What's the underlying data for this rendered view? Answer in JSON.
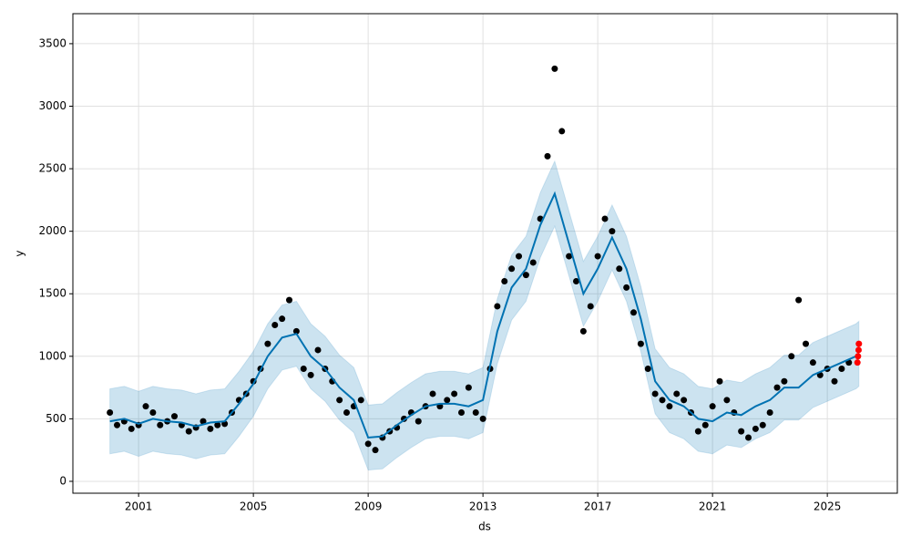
{
  "chart_data": {
    "type": "forecast",
    "xlabel": "ds",
    "ylabel": "y",
    "grid": true,
    "xlim": [
      1998.71,
      2027.44
    ],
    "ylim": [
      -95,
      3740
    ],
    "xticks": [
      2001,
      2005,
      2009,
      2013,
      2017,
      2021,
      2025
    ],
    "yticks": [
      0,
      500,
      1000,
      1500,
      2000,
      2500,
      3000,
      3500
    ],
    "observed": {
      "color": "#000000",
      "x": [
        2000,
        2000.25,
        2000.5,
        2000.75,
        2001,
        2001.25,
        2001.5,
        2001.75,
        2002,
        2002.25,
        2002.5,
        2002.75,
        2003,
        2003.25,
        2003.5,
        2003.75,
        2004,
        2004.25,
        2004.5,
        2004.75,
        2005,
        2005.25,
        2005.5,
        2005.75,
        2006,
        2006.25,
        2006.5,
        2006.75,
        2007,
        2007.25,
        2007.5,
        2007.75,
        2008,
        2008.25,
        2008.5,
        2008.75,
        2009,
        2009.25,
        2009.5,
        2009.75,
        2010,
        2010.25,
        2010.5,
        2010.75,
        2011,
        2011.25,
        2011.5,
        2011.75,
        2012,
        2012.25,
        2012.5,
        2012.75,
        2013,
        2013.25,
        2013.5,
        2013.75,
        2014,
        2014.25,
        2014.5,
        2014.75,
        2015,
        2015.25,
        2015.5,
        2015.75,
        2016,
        2016.25,
        2016.5,
        2016.75,
        2017,
        2017.25,
        2017.5,
        2017.75,
        2018,
        2018.25,
        2018.5,
        2018.75,
        2019,
        2019.25,
        2019.5,
        2019.75,
        2020,
        2020.25,
        2020.5,
        2020.75,
        2021,
        2021.25,
        2021.5,
        2021.75,
        2022,
        2022.25,
        2022.5,
        2022.75,
        2023,
        2023.25,
        2023.5,
        2023.75,
        2024,
        2024.25,
        2024.5,
        2024.75,
        2025,
        2025.25,
        2025.5,
        2025.75
      ],
      "values": [
        550,
        450,
        480,
        420,
        450,
        600,
        550,
        450,
        480,
        520,
        450,
        400,
        430,
        480,
        420,
        450,
        460,
        550,
        650,
        700,
        800,
        900,
        1100,
        1250,
        1300,
        1450,
        1200,
        900,
        850,
        1050,
        900,
        800,
        650,
        550,
        600,
        650,
        300,
        250,
        350,
        400,
        430,
        500,
        550,
        480,
        600,
        700,
        600,
        650,
        700,
        550,
        750,
        550,
        500,
        900,
        1400,
        1600,
        1700,
        1800,
        1650,
        1750,
        2100,
        2600,
        3300,
        2800,
        1800,
        1600,
        1200,
        1400,
        1800,
        2100,
        2000,
        1700,
        1550,
        1350,
        1100,
        900,
        700,
        650,
        600,
        700,
        650,
        550,
        400,
        450,
        600,
        800,
        650,
        550,
        400,
        350,
        420,
        450,
        550,
        750,
        800,
        1000,
        1450,
        1100,
        950,
        850,
        900,
        800,
        900,
        950
      ]
    },
    "recent": {
      "color": "#ff0000",
      "x": [
        2026.05,
        2026.07,
        2026.09,
        2026.1
      ],
      "values": [
        950,
        1000,
        1050,
        1100
      ]
    },
    "forecast": {
      "color": "#0072B2",
      "x": [
        2000,
        2000.5,
        2001,
        2001.5,
        2002,
        2002.5,
        2003,
        2003.5,
        2004,
        2004.5,
        2005,
        2005.5,
        2006,
        2006.5,
        2007,
        2007.5,
        2008,
        2008.5,
        2009,
        2009.5,
        2010,
        2010.5,
        2011,
        2011.5,
        2012,
        2012.5,
        2013,
        2013.5,
        2014,
        2014.5,
        2015,
        2015.5,
        2016,
        2016.5,
        2017,
        2017.5,
        2018,
        2018.5,
        2019,
        2019.5,
        2020,
        2020.5,
        2021,
        2021.5,
        2022,
        2022.5,
        2023,
        2023.5,
        2024,
        2024.5,
        2025,
        2025.5,
        2026,
        2026.1
      ],
      "values": [
        480,
        500,
        460,
        500,
        480,
        470,
        440,
        470,
        480,
        620,
        780,
        1000,
        1150,
        1180,
        1000,
        900,
        750,
        650,
        350,
        360,
        450,
        530,
        600,
        620,
        620,
        600,
        650,
        1200,
        1550,
        1700,
        2050,
        2300,
        1900,
        1500,
        1700,
        1950,
        1700,
        1300,
        800,
        650,
        600,
        500,
        480,
        550,
        530,
        600,
        650,
        750,
        750,
        850,
        900,
        950,
        1000,
        1020
      ],
      "lower": [
        220,
        240,
        200,
        240,
        220,
        210,
        180,
        210,
        220,
        360,
        520,
        740,
        890,
        920,
        740,
        640,
        490,
        390,
        90,
        100,
        190,
        270,
        340,
        360,
        360,
        340,
        390,
        940,
        1290,
        1440,
        1790,
        2040,
        1640,
        1240,
        1440,
        1690,
        1440,
        1040,
        540,
        390,
        340,
        240,
        220,
        290,
        270,
        340,
        390,
        490,
        490,
        590,
        640,
        690,
        740,
        760
      ],
      "upper": [
        740,
        760,
        720,
        760,
        740,
        730,
        700,
        730,
        740,
        880,
        1040,
        1260,
        1410,
        1440,
        1260,
        1160,
        1010,
        910,
        610,
        620,
        710,
        790,
        860,
        880,
        880,
        860,
        910,
        1460,
        1810,
        1960,
        2310,
        2560,
        2160,
        1760,
        1960,
        2210,
        1960,
        1560,
        1060,
        910,
        860,
        760,
        740,
        810,
        790,
        860,
        910,
        1010,
        1010,
        1110,
        1160,
        1210,
        1260,
        1280
      ]
    }
  }
}
